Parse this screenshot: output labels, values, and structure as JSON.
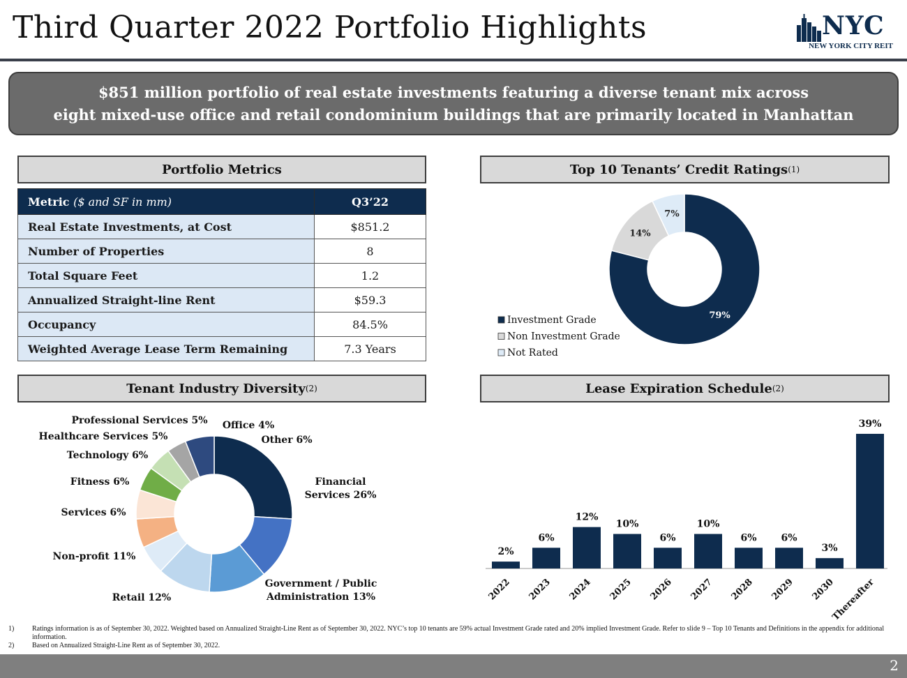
{
  "title": "Third Quarter 2022 Portfolio Highlights",
  "logo": {
    "main": "NYC",
    "sub": "NEW YORK CITY REIT"
  },
  "banner": {
    "line1": "$851 million portfolio of real estate investments featuring a diverse tenant mix across",
    "line2": "eight mixed-use office and retail condominium buildings that are primarily located in Manhattan"
  },
  "sections": {
    "portfolio_metrics": "Portfolio Metrics",
    "credit_ratings": "Top 10 Tenants’ Credit Ratings",
    "credit_ratings_note": "(1)",
    "industry": "Tenant Industry Diversity",
    "industry_note": "(2)",
    "lease": "Lease Expiration Schedule",
    "lease_note": "(2)"
  },
  "metrics_table": {
    "header_metric": "Metric",
    "header_metric_unit": "($ and SF in mm)",
    "header_value": "Q3’22",
    "rows": [
      {
        "label": "Real Estate Investments, at Cost",
        "value": "$851.2"
      },
      {
        "label": "Number of Properties",
        "value": "8"
      },
      {
        "label": "Total Square Feet",
        "value": "1.2"
      },
      {
        "label": "Annualized Straight-line Rent",
        "value": "$59.3"
      },
      {
        "label": "Occupancy",
        "value": "84.5%"
      },
      {
        "label": "Weighted Average Lease Term Remaining",
        "value": "7.3 Years"
      }
    ]
  },
  "chart_data": [
    {
      "type": "pie",
      "donut": true,
      "title": "Top 10 Tenants’ Credit Ratings",
      "legend_position": "bottom-left",
      "categories": [
        "Investment Grade",
        "Non Investment Grade",
        "Not Rated"
      ],
      "values": [
        79,
        14,
        7
      ],
      "labels": [
        "79%",
        "14%",
        "7%"
      ],
      "colors": [
        "#0e2c4e",
        "#d9d9d9",
        "#deebf7"
      ]
    },
    {
      "type": "pie",
      "donut": true,
      "title": "Tenant Industry Diversity",
      "categories": [
        "Financial Services",
        "Government / Public Administration",
        "Retail",
        "Non-profit",
        "Services",
        "Fitness",
        "Technology",
        "Healthcare Services",
        "Professional Services",
        "Office",
        "Other"
      ],
      "values": [
        26,
        13,
        12,
        11,
        6,
        6,
        6,
        5,
        5,
        4,
        6
      ],
      "labels": [
        "Financial Services 26%",
        "Government / Public Administration 13%",
        "Retail 12%",
        "Non-profit 11%",
        "Services 6%",
        "Fitness 6%",
        "Technology 6%",
        "Healthcare Services 5%",
        "Professional Services 5%",
        "Office 4%",
        "Other 6%"
      ],
      "colors": [
        "#0e2c4e",
        "#4472c4",
        "#5b9bd5",
        "#bdd7ee",
        "#deebf7",
        "#f4b183",
        "#fbe5d6",
        "#70ad47",
        "#c5e0b4",
        "#a5a5a5",
        "#2e4a7f"
      ]
    },
    {
      "type": "bar",
      "title": "Lease Expiration Schedule",
      "categories": [
        "2022",
        "2023",
        "2024",
        "2025",
        "2026",
        "2027",
        "2028",
        "2029",
        "2030",
        "Thereafter"
      ],
      "values": [
        2,
        6,
        12,
        10,
        6,
        10,
        6,
        6,
        3,
        39
      ],
      "labels": [
        "2%",
        "6%",
        "12%",
        "10%",
        "6%",
        "10%",
        "6%",
        "6%",
        "3%",
        "39%"
      ],
      "color": "#0e2c4e",
      "ylim": [
        0,
        40
      ],
      "grid": false
    }
  ],
  "footnotes": [
    {
      "num": "1)",
      "text": "Ratings information is as of September 30, 2022. Weighted based on Annualized Straight-Line Rent as of September 30, 2022. NYC’s top 10 tenants are 59% actual Investment Grade rated and 20% implied Investment Grade. Refer to slide 9 – Top 10 Tenants and Definitions in the appendix for additional information."
    },
    {
      "num": "2)",
      "text": "Based on Annualized Straight-Line Rent as of September 30, 2022."
    }
  ],
  "page_number": "2"
}
